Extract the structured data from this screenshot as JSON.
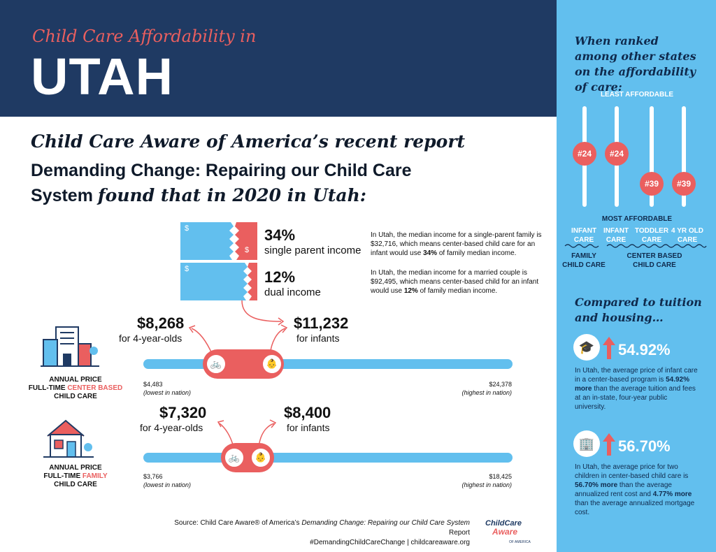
{
  "header": {
    "subtitle": "Child Care Affordability in",
    "state": "UTAH"
  },
  "intro": {
    "line1": "Child Care Aware of America’s recent report",
    "line2_bold": "Demanding Change: Repairing our Child Care",
    "line3_bold": "System",
    "line3_italic": "found that in 2020 in Utah:"
  },
  "income": [
    {
      "percent": "34%",
      "label": "single parent income",
      "share": 0.34,
      "note_pre": "In Utah, the median income for a single-parent family is $32,716, which means center-based child care for an infant would use ",
      "note_bold": "34%",
      "note_post": " of family median income."
    },
    {
      "percent": "12%",
      "label": "dual income",
      "share": 0.12,
      "note_pre": "In Utah, the median income for a married couple is $92,495, which means center-based child for an infant would use ",
      "note_bold": "12%",
      "note_post": " of family median income."
    }
  ],
  "dollar_symbol": "$",
  "center": {
    "price_4yr": "$8,268",
    "label_4yr": "for 4-year-olds",
    "price_infant": "$11,232",
    "label_infant": "for infants",
    "low": "$4,483",
    "low_note": "(lowest in nation)",
    "high": "$24,378",
    "high_note": "(highest in nation)",
    "cap1": "ANNUAL PRICE",
    "cap2a": "FULL-TIME ",
    "cap2b": "CENTER BASED",
    "cap3": "CHILD CARE"
  },
  "family": {
    "price_4yr": "$7,320",
    "label_4yr": "for 4-year-olds",
    "price_infant": "$8,400",
    "label_infant": "for infants",
    "low": "$3,766",
    "low_note": "(lowest in nation)",
    "high": "$18,425",
    "high_note": "(highest in nation)",
    "cap1": "ANNUAL PRICE",
    "cap2a": "FULL-TIME ",
    "cap2b": "FAMILY",
    "cap3": "CHILD CARE"
  },
  "ranking": {
    "heading": "When ranked among other states on the affordability of care:",
    "least": "LEAST AFFORDABLE",
    "most": "MOST AFFORDABLE",
    "items": [
      {
        "rank": "#24",
        "l1": "INFANT",
        "l2": "CARE"
      },
      {
        "rank": "#24",
        "l1": "INFANT",
        "l2": "CARE"
      },
      {
        "rank": "#39",
        "l1": "TODDLER",
        "l2": "CARE"
      },
      {
        "rank": "#39",
        "l1": "4 YR OLD",
        "l2": "CARE"
      }
    ],
    "group1a": "FAMILY",
    "group1b": "CHILD CARE",
    "group2a": "CENTER BASED",
    "group2b": "CHILD CARE"
  },
  "compare": {
    "heading1": "Compared to tuition",
    "heading2": "and housing…",
    "tuition_pct": "54.92%",
    "tuition_pre": "In Utah, the average price of infant care in a center-based program is ",
    "tuition_bold": "54.92% more",
    "tuition_post": " than the average tuition and fees at an in-state, four-year public university.",
    "housing_pct": "56.70%",
    "housing_pre": "In Utah, the average price for two children in center-based child care is ",
    "housing_bold": "56.70% more",
    "housing_mid": " than the average annualized rent cost and ",
    "housing_bold2": "4.77% more",
    "housing_post": " than the average annualized mortgage cost."
  },
  "source": {
    "pre": "Source: Child Care Aware® of America’s ",
    "italic": "Demanding Change: Repairing our Child Care System",
    "post": " Report",
    "line2": "#DemandingChildCareChange | childcareaware.org",
    "logo1": "ChildCare",
    "logo2": "Aware",
    "logo3": "OF AMERICA"
  },
  "colors": {
    "navy": "#1f3a63",
    "sky": "#62bfee",
    "coral": "#ea5f5f"
  }
}
